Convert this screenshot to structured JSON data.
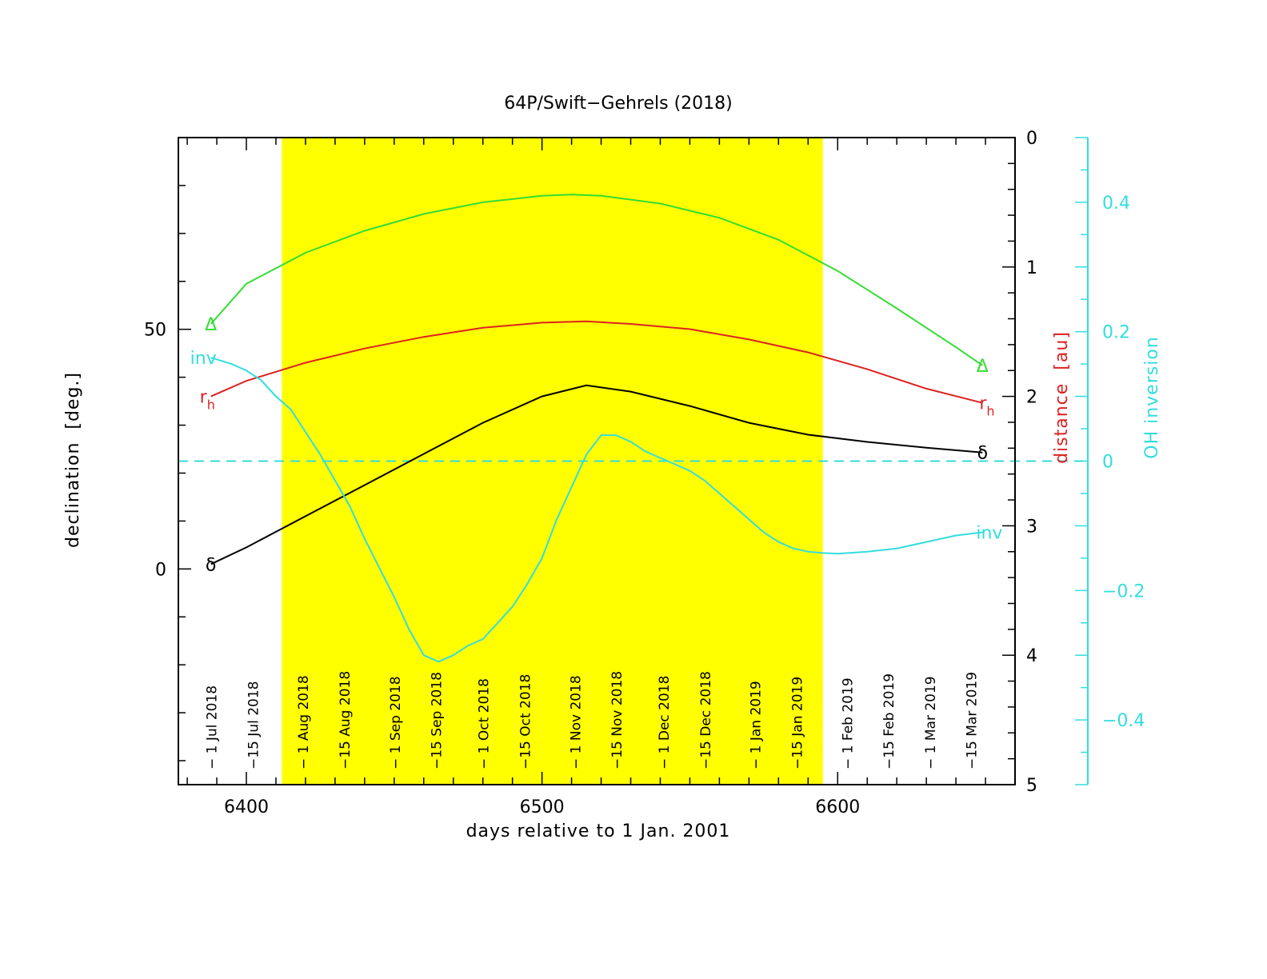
{
  "chart_data": {
    "type": "line",
    "title": "64P/Swift−Gehrels (2018)",
    "xlabel": "days relative to 1 Jan. 2001",
    "ylabel_left": "declination",
    "ylabel_left_unit": "[deg.]",
    "ylabel_right_distance": "distance",
    "ylabel_right_distance_unit": "[au]",
    "ylabel_right_inversion": "OH inversion",
    "xlim": [
      6377,
      6660
    ],
    "ylim_left": [
      -45,
      90
    ],
    "ylim_distance": [
      5,
      0
    ],
    "ylim_inversion": [
      -0.5,
      0.5
    ],
    "x_ticks": [
      "6400",
      "6500",
      "6600"
    ],
    "y_ticks_left": [
      "0",
      "50"
    ],
    "y_ticks_distance": [
      "0",
      "1",
      "2",
      "3",
      "4",
      "5"
    ],
    "y_ticks_inversion": [
      "−0.4",
      "−0.2",
      "0",
      "0.2",
      "0.4"
    ],
    "highlight_band_x": [
      6412,
      6595
    ],
    "highlight_color": "#ffff00",
    "date_labels": [
      {
        "x": 6388,
        "text": "− 1 Jul 2018"
      },
      {
        "x": 6402,
        "text": "−15 Jul 2018"
      },
      {
        "x": 6419,
        "text": "− 1 Aug 2018"
      },
      {
        "x": 6433,
        "text": "−15 Aug 2018"
      },
      {
        "x": 6450,
        "text": "− 1 Sep 2018"
      },
      {
        "x": 6464,
        "text": "−15 Sep 2018"
      },
      {
        "x": 6480,
        "text": "− 1 Oct 2018"
      },
      {
        "x": 6494,
        "text": "−15 Oct 2018"
      },
      {
        "x": 6511,
        "text": "− 1 Nov 2018"
      },
      {
        "x": 6525,
        "text": "−15 Nov 2018"
      },
      {
        "x": 6541,
        "text": "− 1 Dec 2018"
      },
      {
        "x": 6555,
        "text": "−15 Dec 2018"
      },
      {
        "x": 6572,
        "text": "− 1 Jan 2019"
      },
      {
        "x": 6586,
        "text": "−15 Jan 2019"
      },
      {
        "x": 6603,
        "text": "− 1 Feb 2019"
      },
      {
        "x": 6617,
        "text": "−15 Feb 2019"
      },
      {
        "x": 6631,
        "text": "− 1 Mar 2019"
      },
      {
        "x": 6645,
        "text": "−15 Mar 2019"
      }
    ],
    "series": [
      {
        "label": "Δ",
        "axis": "distance",
        "color": "#33dd33",
        "x": [
          6388,
          6400,
          6420,
          6440,
          6460,
          6480,
          6500,
          6510,
          6520,
          6540,
          6560,
          6580,
          6600,
          6620,
          6640,
          6649
        ],
        "y": [
          1.44,
          1.13,
          0.89,
          0.72,
          0.59,
          0.5,
          0.45,
          0.44,
          0.45,
          0.51,
          0.62,
          0.79,
          1.03,
          1.32,
          1.62,
          1.76
        ]
      },
      {
        "label": "r",
        "label_sub": "h",
        "axis": "distance",
        "color": "#dd2222",
        "x": [
          6388,
          6400,
          6420,
          6440,
          6460,
          6480,
          6500,
          6515,
          6530,
          6550,
          6570,
          6590,
          6610,
          6630,
          6649
        ],
        "y": [
          2.0,
          1.88,
          1.74,
          1.63,
          1.54,
          1.47,
          1.43,
          1.42,
          1.44,
          1.48,
          1.56,
          1.66,
          1.79,
          1.94,
          2.05
        ]
      },
      {
        "label": "δ",
        "axis": "left",
        "color": "#000000",
        "x": [
          6388,
          6400,
          6420,
          6440,
          6460,
          6480,
          6500,
          6515,
          6530,
          6550,
          6570,
          6590,
          6610,
          6630,
          6649
        ],
        "y": [
          1,
          4.5,
          11,
          17.5,
          24,
          30.5,
          36,
          38.3,
          37,
          34,
          30.5,
          28,
          26.5,
          25.3,
          24.3
        ]
      },
      {
        "label": "inv",
        "axis": "inversion",
        "color": "#33dddd",
        "x": [
          6388,
          6395,
          6400,
          6405,
          6410,
          6415,
          6420,
          6425,
          6430,
          6435,
          6440,
          6445,
          6450,
          6455,
          6460,
          6465,
          6470,
          6475,
          6480,
          6485,
          6490,
          6495,
          6500,
          6505,
          6510,
          6515,
          6520,
          6525,
          6530,
          6535,
          6540,
          6545,
          6550,
          6555,
          6560,
          6565,
          6570,
          6575,
          6580,
          6585,
          6590,
          6595,
          6600,
          6610,
          6620,
          6630,
          6640,
          6649
        ],
        "y": [
          0.16,
          0.15,
          0.14,
          0.125,
          0.1,
          0.08,
          0.045,
          0.01,
          -0.03,
          -0.07,
          -0.12,
          -0.165,
          -0.21,
          -0.26,
          -0.3,
          -0.31,
          -0.3,
          -0.285,
          -0.275,
          -0.25,
          -0.225,
          -0.19,
          -0.15,
          -0.09,
          -0.04,
          0.01,
          0.04,
          0.04,
          0.03,
          0.015,
          0.005,
          -0.005,
          -0.015,
          -0.03,
          -0.05,
          -0.07,
          -0.09,
          -0.11,
          -0.125,
          -0.135,
          -0.14,
          -0.142,
          -0.143,
          -0.14,
          -0.135,
          -0.125,
          -0.115,
          -0.11
        ]
      }
    ],
    "reference_line": {
      "axis": "inversion",
      "y": 0,
      "style": "dashed",
      "color": "#33dddd"
    },
    "grid": false,
    "legend": "none"
  }
}
